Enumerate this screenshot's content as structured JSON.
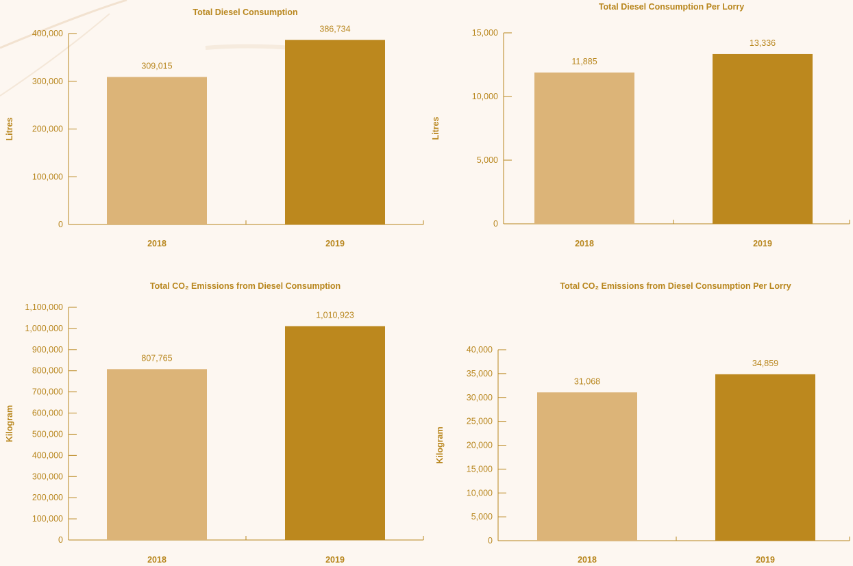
{
  "colors": {
    "bar_2018": "#dcb478",
    "bar_2019": "#bc881e",
    "text": "#b8861d",
    "axis": "#b8861d",
    "background": "#fdf7f1"
  },
  "chart_data": [
    {
      "type": "bar",
      "title": "Total Diesel Consumption",
      "ylabel": "Litres",
      "categories": [
        "2018",
        "2019"
      ],
      "values": [
        309015,
        386734
      ],
      "value_labels": [
        "309,015",
        "386,734"
      ],
      "ylim": [
        0,
        400000
      ],
      "yticks": [
        0,
        100000,
        200000,
        300000,
        400000
      ],
      "ytick_labels": [
        "0",
        "100,000",
        "200,000",
        "300,000",
        "400,000"
      ],
      "grid": false
    },
    {
      "type": "bar",
      "title": "Total Diesel Consumption Per Lorry",
      "ylabel": "Litres",
      "categories": [
        "2018",
        "2019"
      ],
      "values": [
        11885,
        13336
      ],
      "value_labels": [
        "11,885",
        "13,336"
      ],
      "ylim": [
        0,
        15000
      ],
      "yticks": [
        0,
        5000,
        10000,
        15000
      ],
      "ytick_labels": [
        "0",
        "5,000",
        "10,000",
        "15,000"
      ],
      "grid": false
    },
    {
      "type": "bar",
      "title": "Total CO₂ Emissions from Diesel Consumption",
      "ylabel": "Kilogram",
      "categories": [
        "2018",
        "2019"
      ],
      "values": [
        807765,
        1010923
      ],
      "value_labels": [
        "807,765",
        "1,010,923"
      ],
      "ylim": [
        0,
        1100000
      ],
      "yticks": [
        0,
        100000,
        200000,
        300000,
        400000,
        500000,
        600000,
        700000,
        800000,
        900000,
        1000000,
        1100000
      ],
      "ytick_labels": [
        "0",
        "100,000",
        "200,000",
        "300,000",
        "400,000",
        "500,000",
        "600,000",
        "700,000",
        "800,000",
        "900,000",
        "1,000,000",
        "1,100,000"
      ],
      "grid": false
    },
    {
      "type": "bar",
      "title": "Total CO₂ Emissions from Diesel Consumption Per Lorry",
      "ylabel": "Kilogram",
      "categories": [
        "2018",
        "2019"
      ],
      "values": [
        31068,
        34859
      ],
      "value_labels": [
        "31,068",
        "34,859"
      ],
      "ylim": [
        0,
        40000
      ],
      "yticks": [
        0,
        5000,
        10000,
        15000,
        20000,
        25000,
        30000,
        35000,
        40000
      ],
      "ytick_labels": [
        "0",
        "5,000",
        "10,000",
        "15,000",
        "20,000",
        "25,000",
        "30,000",
        "35,000",
        "40,000"
      ],
      "grid": false
    }
  ]
}
